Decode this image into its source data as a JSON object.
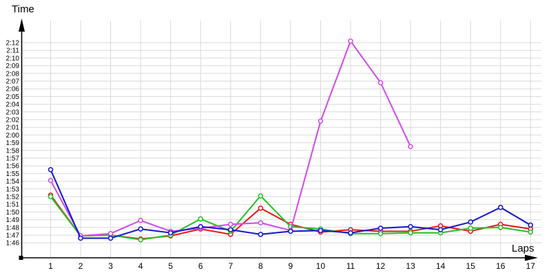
{
  "chart_data": {
    "type": "line",
    "title": "",
    "xlabel": "Laps",
    "ylabel": "Time",
    "unit": "m:ss (lap time)",
    "x": [
      1,
      2,
      3,
      4,
      5,
      6,
      7,
      8,
      9,
      10,
      11,
      12,
      13,
      14,
      15,
      16,
      17
    ],
    "x_tick_labels": [
      "1",
      "2",
      "3",
      "4",
      "5",
      "6",
      "7",
      "8",
      "9",
      "10",
      "11",
      "12",
      "13",
      "14",
      "15",
      "16",
      "17"
    ],
    "y_tick_labels": [
      "2:12",
      "2:11",
      "2:10",
      "2:09",
      "2:08",
      "2:07",
      "2:06",
      "2:05",
      "2:04",
      "2:03",
      "2:02",
      "2:01",
      "2:00",
      "1:59",
      "1:58",
      "1:57",
      "1:56",
      "1:55",
      "1:54",
      "1:53",
      "1:52",
      "1:51",
      "1:50",
      "1:49",
      "1:48",
      "1:47",
      "1:46"
    ],
    "y_axis": {
      "min_sec": 106,
      "max_sec": 132,
      "tick_step_sec": 1
    },
    "grid": true,
    "legend": "none",
    "series": [
      {
        "name": "red",
        "color": "#e81c1c",
        "values_sec": [
          112.2,
          106.9,
          107.0,
          106.5,
          106.9,
          107.8,
          107.1,
          110.5,
          108.4,
          107.4,
          107.7,
          107.5,
          107.5,
          108.2,
          107.5,
          108.4,
          107.8
        ]
      },
      {
        "name": "green",
        "color": "#27c127",
        "values_sec": [
          112.0,
          106.9,
          107.0,
          106.4,
          107.0,
          109.1,
          107.5,
          112.1,
          108.1,
          107.8,
          107.2,
          107.2,
          107.3,
          107.3,
          107.9,
          108.0,
          107.4
        ]
      },
      {
        "name": "violet",
        "color": "#d24fe8",
        "values_sec": [
          114.1,
          106.9,
          107.2,
          108.9,
          107.5,
          107.9,
          108.4,
          108.6,
          107.6,
          121.8,
          132.2,
          126.8,
          118.5
        ]
      },
      {
        "name": "blue",
        "color": "#1a1ace",
        "values_sec": [
          115.5,
          106.6,
          106.6,
          107.8,
          107.3,
          108.1,
          107.7,
          107.1,
          107.5,
          107.6,
          107.3,
          107.9,
          108.1,
          107.7,
          108.7,
          110.6,
          108.3
        ]
      }
    ]
  },
  "labels": {
    "y_title": "Time",
    "x_title": "Laps"
  },
  "style": {
    "grid_color": "#d9d9d9",
    "axis_color": "#000000",
    "marker_fill": "#ffffff"
  }
}
